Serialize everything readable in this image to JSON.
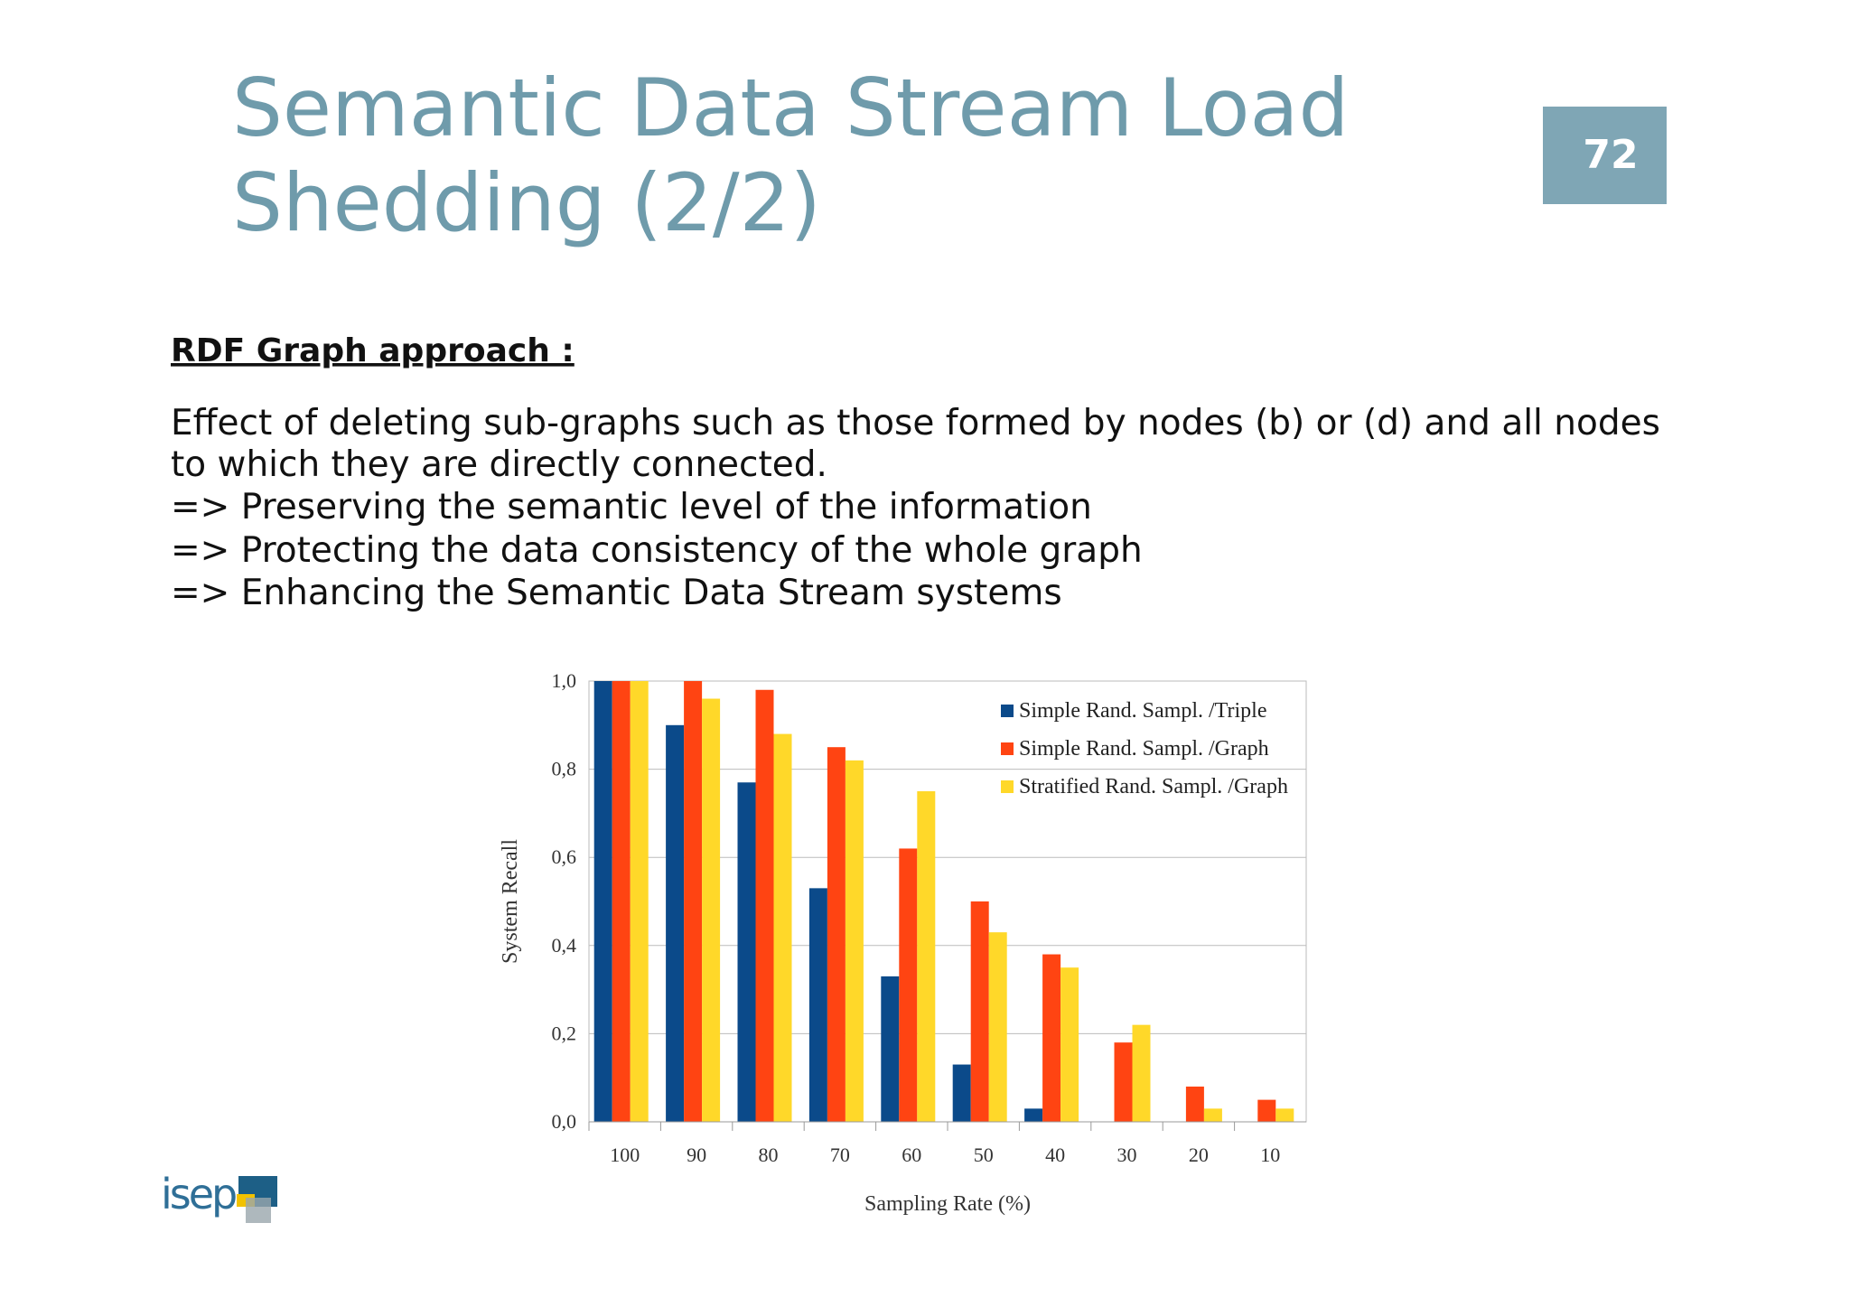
{
  "header": {
    "title_lines": [
      "Semantic Data Stream Load",
      "Shedding (2/2)"
    ],
    "page_number": "72"
  },
  "section_heading": "RDF Graph approach :",
  "body_lines": [
    "Effect of deleting sub-graphs such as those formed by nodes (b) or (d) and all nodes",
    "to which they are directly connected.",
    "=> Preserving the semantic level of the information",
    "=> Protecting the data consistency of the whole graph",
    "=> Enhancing the Semantic Data Stream systems"
  ],
  "logo": "isep",
  "chart_data": {
    "type": "bar",
    "x_label": "Sampling Rate (%)",
    "y_label": "System Recall",
    "categories": [
      "100",
      "90",
      "80",
      "70",
      "60",
      "50",
      "40",
      "30",
      "20",
      "10"
    ],
    "series": [
      {
        "name": "Simple Rand. Sampl. /Triple",
        "color": "#0b4a8a",
        "values": [
          1.0,
          0.9,
          0.77,
          0.53,
          0.33,
          0.13,
          0.03,
          0,
          0,
          0
        ]
      },
      {
        "name": "Simple Rand. Sampl. /Graph",
        "color": "#ff4412",
        "values": [
          1.0,
          1.0,
          0.98,
          0.85,
          0.62,
          0.5,
          0.38,
          0.18,
          0.08,
          0.05
        ]
      },
      {
        "name": "Stratified Rand. Sampl. /Graph",
        "color": "#ffd829",
        "values": [
          1.0,
          0.96,
          0.88,
          0.82,
          0.75,
          0.43,
          0.35,
          0.22,
          0.03,
          0.03
        ]
      }
    ],
    "ylim": [
      0,
      1
    ],
    "yticks": [
      {
        "value": 0,
        "label": "0,0"
      },
      {
        "value": 0.2,
        "label": "0,2"
      },
      {
        "value": 0.4,
        "label": "0,4"
      },
      {
        "value": 0.6,
        "label": "0,6"
      },
      {
        "value": 0.8,
        "label": "0,8"
      },
      {
        "value": 1,
        "label": "1,0"
      }
    ],
    "grid": true,
    "legend": "top-right"
  }
}
